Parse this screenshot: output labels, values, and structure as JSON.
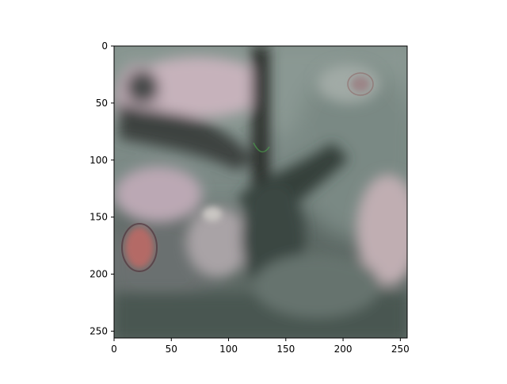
{
  "figure": {
    "xlim": [
      0,
      256
    ],
    "ylim": [
      256,
      0
    ],
    "x_ticks": [
      0,
      50,
      100,
      150,
      200,
      250
    ],
    "y_ticks": [
      0,
      50,
      100,
      150,
      200,
      250
    ],
    "image_content": "blurry-reconstructed-photo",
    "palette": {
      "sky": "#8e9e98",
      "cloud_pink": "#c6b2bb",
      "dark": "#38403c",
      "trunk": "#2a2e2c",
      "grey_green": "#6f807b",
      "red_blob": "#b46a66",
      "lavender": "#bba8b4"
    }
  }
}
